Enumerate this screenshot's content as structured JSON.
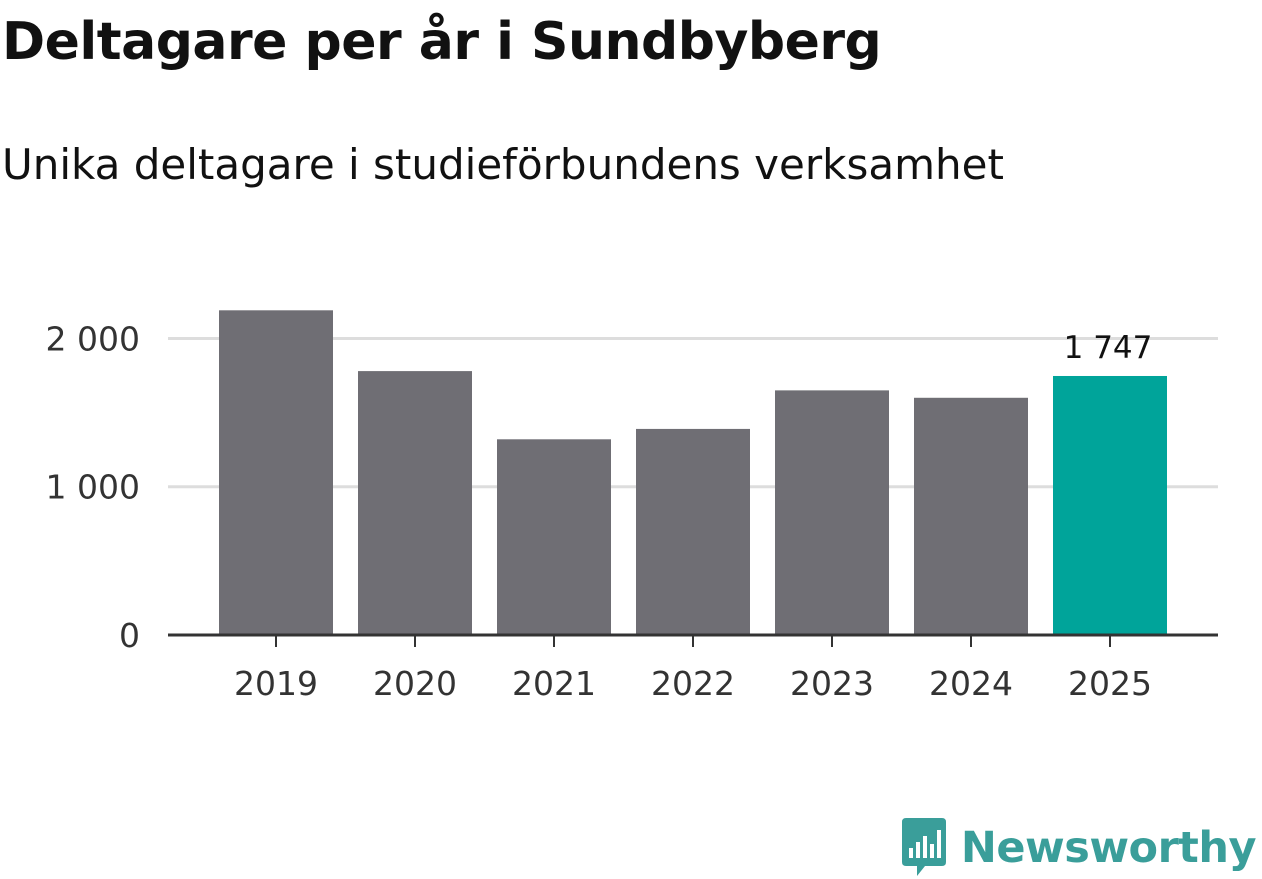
{
  "chart_data": {
    "type": "bar",
    "title": "Deltagare per år i Sundbyberg",
    "subtitle": "Unika deltagare i studieförbundens verksamhet",
    "categories": [
      "2019",
      "2020",
      "2021",
      "2022",
      "2023",
      "2024",
      "2025"
    ],
    "values": [
      2190,
      1780,
      1320,
      1390,
      1650,
      1600,
      1747
    ],
    "ylim": [
      0,
      2300
    ],
    "yticks": [
      {
        "value": 0,
        "label": "0"
      },
      {
        "value": 1000,
        "label": "1 000"
      },
      {
        "value": 2000,
        "label": "2 000"
      }
    ],
    "data_labels": [
      {
        "index": 6,
        "text": "1 747"
      }
    ],
    "grid": true,
    "colors": {
      "bar": "#6f6e74",
      "highlight": "#00a49a",
      "grid": "#dddddd",
      "axis": "#333333"
    },
    "highlight_index": 6
  },
  "brand": {
    "name": "Newsworthy",
    "icon": "newsworthy-logo-icon",
    "color": "#3a9e9a"
  }
}
